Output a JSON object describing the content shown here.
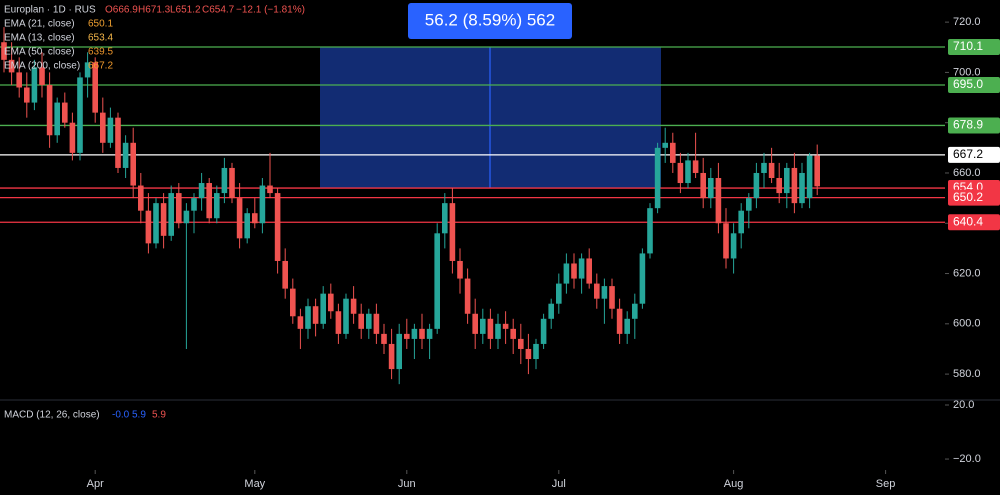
{
  "chart_data": {
    "type": "candlestick",
    "title": "Europlan · 1D · RUS",
    "ohlc_labels": [
      "O666.9",
      "H671.3",
      "L651.2",
      "C654.7"
    ],
    "change": "−12.1 (−1.81%)",
    "indicators": [
      {
        "name": "EMA (21, close)",
        "value": 650.1,
        "color": "#f0a030"
      },
      {
        "name": "EMA (13, close)",
        "value": 653.4,
        "color": "#f5b74a"
      },
      {
        "name": "EMA (50, close)",
        "value": 639.5,
        "color": "#e8922a"
      },
      {
        "name": "EMA (200, close)",
        "value": 667.2,
        "color": "#f29b2c"
      }
    ],
    "up_color": "#26a69a",
    "down_color": "#ef5350",
    "candles": [
      [
        712,
        718,
        700,
        705
      ],
      [
        705,
        712,
        695,
        700
      ],
      [
        700,
        706,
        690,
        694
      ],
      [
        694,
        700,
        682,
        688
      ],
      [
        688,
        705,
        685,
        702
      ],
      [
        702,
        708,
        690,
        695
      ],
      [
        695,
        700,
        670,
        675
      ],
      [
        675,
        690,
        672,
        688
      ],
      [
        688,
        692,
        678,
        680
      ],
      [
        680,
        684,
        665,
        668
      ],
      [
        668,
        700,
        665,
        698
      ],
      [
        698,
        708,
        690,
        704
      ],
      [
        704,
        706,
        680,
        684
      ],
      [
        684,
        690,
        668,
        672
      ],
      [
        672,
        686,
        670,
        682
      ],
      [
        682,
        684,
        660,
        662
      ],
      [
        662,
        675,
        658,
        672
      ],
      [
        672,
        678,
        650,
        655
      ],
      [
        655,
        660,
        640,
        645
      ],
      [
        645,
        652,
        628,
        632
      ],
      [
        632,
        650,
        630,
        648
      ],
      [
        648,
        652,
        630,
        635
      ],
      [
        635,
        655,
        633,
        652
      ],
      [
        652,
        656,
        638,
        640
      ],
      [
        640,
        648,
        590,
        645
      ],
      [
        645,
        652,
        636,
        650
      ],
      [
        650,
        660,
        645,
        656
      ],
      [
        656,
        658,
        640,
        642
      ],
      [
        642,
        655,
        640,
        652
      ],
      [
        652,
        666,
        648,
        662
      ],
      [
        662,
        664,
        648,
        650
      ],
      [
        650,
        656,
        630,
        634
      ],
      [
        634,
        646,
        632,
        644
      ],
      [
        644,
        650,
        638,
        640
      ],
      [
        640,
        658,
        636,
        655
      ],
      [
        655,
        668,
        650,
        652
      ],
      [
        652,
        654,
        620,
        625
      ],
      [
        625,
        630,
        610,
        614
      ],
      [
        614,
        618,
        600,
        603
      ],
      [
        603,
        606,
        590,
        598
      ],
      [
        598,
        610,
        594,
        607
      ],
      [
        607,
        610,
        595,
        600
      ],
      [
        600,
        615,
        598,
        612
      ],
      [
        612,
        616,
        602,
        605
      ],
      [
        605,
        608,
        592,
        596
      ],
      [
        596,
        612,
        594,
        610
      ],
      [
        610,
        615,
        600,
        604
      ],
      [
        604,
        608,
        594,
        598
      ],
      [
        598,
        606,
        594,
        604
      ],
      [
        604,
        608,
        592,
        596
      ],
      [
        596,
        600,
        588,
        592
      ],
      [
        592,
        598,
        578,
        582
      ],
      [
        582,
        600,
        576,
        596
      ],
      [
        596,
        602,
        590,
        594
      ],
      [
        594,
        600,
        586,
        598
      ],
      [
        598,
        604,
        590,
        594
      ],
      [
        594,
        600,
        586,
        598
      ],
      [
        598,
        640,
        596,
        636
      ],
      [
        636,
        652,
        630,
        648
      ],
      [
        648,
        654,
        620,
        625
      ],
      [
        625,
        630,
        612,
        618
      ],
      [
        618,
        622,
        600,
        604
      ],
      [
        604,
        610,
        590,
        596
      ],
      [
        596,
        606,
        592,
        602
      ],
      [
        602,
        606,
        590,
        594
      ],
      [
        594,
        604,
        590,
        600
      ],
      [
        600,
        605,
        592,
        598
      ],
      [
        598,
        602,
        588,
        594
      ],
      [
        594,
        600,
        584,
        590
      ],
      [
        590,
        596,
        580,
        586
      ],
      [
        586,
        594,
        582,
        592
      ],
      [
        592,
        604,
        590,
        602
      ],
      [
        602,
        610,
        598,
        608
      ],
      [
        608,
        620,
        604,
        616
      ],
      [
        616,
        628,
        612,
        624
      ],
      [
        624,
        628,
        614,
        618
      ],
      [
        618,
        628,
        612,
        626
      ],
      [
        626,
        630,
        614,
        616
      ],
      [
        616,
        620,
        606,
        610
      ],
      [
        610,
        618,
        600,
        615
      ],
      [
        615,
        618,
        602,
        606
      ],
      [
        606,
        610,
        592,
        596
      ],
      [
        596,
        605,
        592,
        602
      ],
      [
        602,
        612,
        594,
        608
      ],
      [
        608,
        630,
        606,
        628
      ],
      [
        628,
        648,
        626,
        646
      ],
      [
        646,
        672,
        644,
        670
      ],
      [
        670,
        678,
        664,
        672
      ],
      [
        672,
        676,
        660,
        664
      ],
      [
        664,
        668,
        652,
        656
      ],
      [
        656,
        668,
        654,
        665
      ],
      [
        665,
        676,
        658,
        660
      ],
      [
        660,
        666,
        646,
        650
      ],
      [
        650,
        662,
        646,
        658
      ],
      [
        658,
        664,
        636,
        640
      ],
      [
        640,
        646,
        622,
        626
      ],
      [
        626,
        640,
        620,
        636
      ],
      [
        636,
        648,
        630,
        645
      ],
      [
        645,
        652,
        638,
        650
      ],
      [
        650,
        664,
        646,
        660
      ],
      [
        660,
        668,
        654,
        664
      ],
      [
        664,
        670,
        656,
        658
      ],
      [
        658,
        664,
        648,
        652
      ],
      [
        652,
        664,
        646,
        662
      ],
      [
        662,
        668,
        644,
        648
      ],
      [
        648,
        664,
        646,
        660
      ],
      [
        650,
        668,
        646,
        666.9
      ],
      [
        666.9,
        671.3,
        651.2,
        654.7
      ]
    ],
    "xticks": [
      {
        "value": 12,
        "label": "Apr"
      },
      {
        "value": 33,
        "label": "May"
      },
      {
        "value": 53,
        "label": "Jun"
      },
      {
        "value": 73,
        "label": "Jul"
      },
      {
        "value": 96,
        "label": "Aug"
      },
      {
        "value": 116,
        "label": "Sep"
      }
    ],
    "ylim": [
      569.7,
      728.8
    ],
    "yticks": [
      {
        "value": 580,
        "label": "580.0"
      },
      {
        "value": 600,
        "label": "600.0"
      },
      {
        "value": 620,
        "label": "620.0"
      },
      {
        "value": 640,
        "label": "640.0"
      },
      {
        "value": 660,
        "label": "660.0"
      },
      {
        "value": 680,
        "label": "680.0"
      },
      {
        "value": 700,
        "label": "700.0"
      },
      {
        "value": 720,
        "label": "720.0"
      }
    ],
    "levels": [
      {
        "value": 710.1,
        "color": "#4caf50"
      },
      {
        "value": 695,
        "label": "695.0",
        "color": "#4caf50"
      },
      {
        "value": 678.9,
        "color": "#4caf50"
      },
      {
        "value": 667.2,
        "color": "#ffffff"
      },
      {
        "value": 654,
        "label": "654.0",
        "color": "#f23645"
      },
      {
        "value": 650.2,
        "color": "#f23645"
      },
      {
        "value": 640.4,
        "color": "#f23645"
      }
    ],
    "measure": {
      "label": "56.2 (8.59%) 562",
      "from": 654,
      "to": 710.1,
      "color": "#2962ff"
    },
    "macd": {
      "name": "MACD (12, 26, close)",
      "values": [
        {
          "value": -0.0,
          "label": "-0.0",
          "color": "#2962ff"
        },
        {
          "value": 5.9,
          "color": "#2962ff"
        },
        {
          "value": 5.9,
          "color": "#ef5350"
        }
      ],
      "ylim": [
        -28.1,
        23.7
      ],
      "yticks": [
        {
          "value": 20,
          "label": "20.0"
        },
        {
          "value": -20,
          "label": "−20.0"
        }
      ]
    }
  }
}
